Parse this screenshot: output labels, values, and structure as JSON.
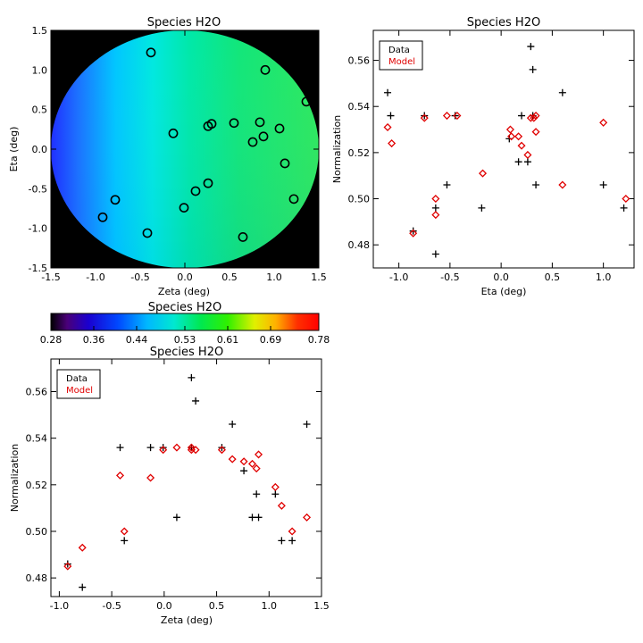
{
  "chart_data": [
    {
      "id": "map",
      "type": "heatmap",
      "title": "Species H2O",
      "xlabel": "Zeta (deg)",
      "ylabel": "Eta (deg)",
      "xlim": [
        -1.5,
        1.5
      ],
      "ylim": [
        -1.5,
        1.5
      ],
      "xticks": [
        -1.5,
        -1.0,
        -0.5,
        0.0,
        0.5,
        1.0,
        1.5
      ],
      "xtick_labels": [
        "-1.5",
        "-1.0",
        "-0.5",
        "0.0",
        "0.5",
        "1.0",
        "1.5"
      ],
      "yticks": [
        -1.5,
        -1.0,
        -0.5,
        0.0,
        0.5,
        1.0,
        1.5
      ],
      "ytick_labels": [
        "-1.5",
        "-1.0",
        "-0.5",
        "0.0",
        "0.5",
        "1.0",
        "1.5"
      ],
      "field_radius_deg": 1.5,
      "field_values": {
        "west": 0.4,
        "center": 0.52,
        "east": 0.55
      },
      "points": [
        {
          "zeta": -0.38,
          "eta": 1.22
        },
        {
          "zeta": 0.9,
          "eta": 1.0
        },
        {
          "zeta": 1.36,
          "eta": 0.6
        },
        {
          "zeta": 0.3,
          "eta": 0.32
        },
        {
          "zeta": 0.26,
          "eta": 0.29
        },
        {
          "zeta": 0.55,
          "eta": 0.33
        },
        {
          "zeta": 0.84,
          "eta": 0.34
        },
        {
          "zeta": -0.13,
          "eta": 0.2
        },
        {
          "zeta": 1.06,
          "eta": 0.26
        },
        {
          "zeta": 0.88,
          "eta": 0.16
        },
        {
          "zeta": 0.76,
          "eta": 0.09
        },
        {
          "zeta": 1.12,
          "eta": -0.18
        },
        {
          "zeta": 0.26,
          "eta": -0.43
        },
        {
          "zeta": 0.12,
          "eta": -0.53
        },
        {
          "zeta": 1.22,
          "eta": -0.63
        },
        {
          "zeta": -0.78,
          "eta": -0.64
        },
        {
          "zeta": -0.01,
          "eta": -0.74
        },
        {
          "zeta": -0.92,
          "eta": -0.86
        },
        {
          "zeta": -0.42,
          "eta": -1.06
        },
        {
          "zeta": 0.65,
          "eta": -1.11
        }
      ]
    },
    {
      "id": "colorbar",
      "type": "colorbar",
      "title": "Species H2O",
      "min": 0.28,
      "max": 0.78,
      "ticks": [
        0.28,
        0.36,
        0.44,
        0.53,
        0.61,
        0.69,
        0.78
      ],
      "tick_labels": [
        "0.28",
        "0.36",
        "0.44",
        "0.53",
        "0.61",
        "0.69",
        "0.78"
      ]
    },
    {
      "id": "eta_plot",
      "type": "scatter",
      "title": "Species H2O",
      "xlabel": "Eta (deg)",
      "ylabel": "Normalization",
      "xlim": [
        -1.25,
        1.3
      ],
      "ylim": [
        0.47,
        0.573
      ],
      "xticks": [
        -1.0,
        -0.5,
        0.0,
        0.5,
        1.0
      ],
      "xtick_labels": [
        "-1.0",
        "-0.5",
        "0.0",
        "0.5",
        "1.0"
      ],
      "yticks": [
        0.48,
        0.5,
        0.52,
        0.54,
        0.56
      ],
      "ytick_labels": [
        "0.48",
        "0.50",
        "0.52",
        "0.54",
        "0.56"
      ],
      "legend": {
        "position": "top-left",
        "entries": [
          {
            "label": "Data",
            "color": "#000000"
          },
          {
            "label": "Model",
            "color": "#e00000"
          }
        ]
      },
      "series": [
        {
          "name": "Data",
          "marker": "plus",
          "color": "#000000",
          "points": [
            {
              "x": 0.29,
              "y": 0.566
            },
            {
              "x": 0.31,
              "y": 0.556
            },
            {
              "x": -1.11,
              "y": 0.546
            },
            {
              "x": 0.6,
              "y": 0.546
            },
            {
              "x": -1.08,
              "y": 0.536
            },
            {
              "x": -0.75,
              "y": 0.536
            },
            {
              "x": -0.45,
              "y": 0.536
            },
            {
              "x": 0.2,
              "y": 0.536
            },
            {
              "x": 0.31,
              "y": 0.536
            },
            {
              "x": 0.08,
              "y": 0.526
            },
            {
              "x": 0.17,
              "y": 0.516
            },
            {
              "x": 0.26,
              "y": 0.516
            },
            {
              "x": -0.53,
              "y": 0.506
            },
            {
              "x": 0.34,
              "y": 0.506
            },
            {
              "x": 1.0,
              "y": 0.506
            },
            {
              "x": -0.64,
              "y": 0.496
            },
            {
              "x": -0.19,
              "y": 0.496
            },
            {
              "x": 1.2,
              "y": 0.496
            },
            {
              "x": -0.86,
              "y": 0.486
            },
            {
              "x": -0.64,
              "y": 0.476
            }
          ]
        },
        {
          "name": "Model",
          "marker": "diamond",
          "color": "#e00000",
          "points": [
            {
              "x": -1.11,
              "y": 0.531
            },
            {
              "x": -1.07,
              "y": 0.524
            },
            {
              "x": -0.86,
              "y": 0.485
            },
            {
              "x": -0.75,
              "y": 0.535
            },
            {
              "x": -0.64,
              "y": 0.5
            },
            {
              "x": -0.64,
              "y": 0.493
            },
            {
              "x": -0.53,
              "y": 0.536
            },
            {
              "x": -0.43,
              "y": 0.536
            },
            {
              "x": -0.18,
              "y": 0.511
            },
            {
              "x": 0.09,
              "y": 0.53
            },
            {
              "x": 0.1,
              "y": 0.527
            },
            {
              "x": 0.17,
              "y": 0.527
            },
            {
              "x": 0.2,
              "y": 0.523
            },
            {
              "x": 0.26,
              "y": 0.519
            },
            {
              "x": 0.29,
              "y": 0.535
            },
            {
              "x": 0.32,
              "y": 0.535
            },
            {
              "x": 0.34,
              "y": 0.536
            },
            {
              "x": 0.34,
              "y": 0.529
            },
            {
              "x": 0.6,
              "y": 0.506
            },
            {
              "x": 1.0,
              "y": 0.533
            },
            {
              "x": 1.22,
              "y": 0.5
            }
          ]
        }
      ]
    },
    {
      "id": "zeta_plot",
      "type": "scatter",
      "title": "Species H2O",
      "xlabel": "Zeta (deg)",
      "ylabel": "Normalization",
      "xlim": [
        -1.08,
        1.5
      ],
      "ylim": [
        0.472,
        0.574
      ],
      "xticks": [
        -1.0,
        -0.5,
        0.0,
        0.5,
        1.0,
        1.5
      ],
      "xtick_labels": [
        "-1.0",
        "-0.5",
        "0.0",
        "0.5",
        "1.0",
        "1.5"
      ],
      "yticks": [
        0.48,
        0.5,
        0.52,
        0.54,
        0.56
      ],
      "ytick_labels": [
        "0.48",
        "0.50",
        "0.52",
        "0.54",
        "0.56"
      ],
      "legend": {
        "position": "top-left",
        "entries": [
          {
            "label": "Data",
            "color": "#000000"
          },
          {
            "label": "Model",
            "color": "#e00000"
          }
        ]
      },
      "series": [
        {
          "name": "Data",
          "marker": "plus",
          "color": "#000000",
          "points": [
            {
              "x": 0.26,
              "y": 0.566
            },
            {
              "x": 0.3,
              "y": 0.556
            },
            {
              "x": 0.65,
              "y": 0.546
            },
            {
              "x": 1.36,
              "y": 0.546
            },
            {
              "x": -0.42,
              "y": 0.536
            },
            {
              "x": -0.13,
              "y": 0.536
            },
            {
              "x": -0.01,
              "y": 0.536
            },
            {
              "x": 0.26,
              "y": 0.536
            },
            {
              "x": 0.55,
              "y": 0.536
            },
            {
              "x": 0.76,
              "y": 0.526
            },
            {
              "x": 0.88,
              "y": 0.516
            },
            {
              "x": 1.06,
              "y": 0.516
            },
            {
              "x": 0.12,
              "y": 0.506
            },
            {
              "x": 0.84,
              "y": 0.506
            },
            {
              "x": 0.9,
              "y": 0.506
            },
            {
              "x": -0.38,
              "y": 0.496
            },
            {
              "x": 1.12,
              "y": 0.496
            },
            {
              "x": 1.22,
              "y": 0.496
            },
            {
              "x": -0.92,
              "y": 0.486
            },
            {
              "x": -0.78,
              "y": 0.476
            }
          ]
        },
        {
          "name": "Model",
          "marker": "diamond",
          "color": "#e00000",
          "points": [
            {
              "x": -0.92,
              "y": 0.485
            },
            {
              "x": -0.78,
              "y": 0.493
            },
            {
              "x": -0.42,
              "y": 0.524
            },
            {
              "x": -0.38,
              "y": 0.5
            },
            {
              "x": -0.13,
              "y": 0.523
            },
            {
              "x": -0.01,
              "y": 0.535
            },
            {
              "x": 0.12,
              "y": 0.536
            },
            {
              "x": 0.26,
              "y": 0.535
            },
            {
              "x": 0.26,
              "y": 0.536
            },
            {
              "x": 0.3,
              "y": 0.535
            },
            {
              "x": 0.55,
              "y": 0.535
            },
            {
              "x": 0.65,
              "y": 0.531
            },
            {
              "x": 0.76,
              "y": 0.53
            },
            {
              "x": 0.84,
              "y": 0.529
            },
            {
              "x": 0.88,
              "y": 0.527
            },
            {
              "x": 0.9,
              "y": 0.533
            },
            {
              "x": 1.06,
              "y": 0.519
            },
            {
              "x": 1.12,
              "y": 0.511
            },
            {
              "x": 1.22,
              "y": 0.5
            },
            {
              "x": 1.36,
              "y": 0.506
            }
          ]
        }
      ]
    }
  ]
}
